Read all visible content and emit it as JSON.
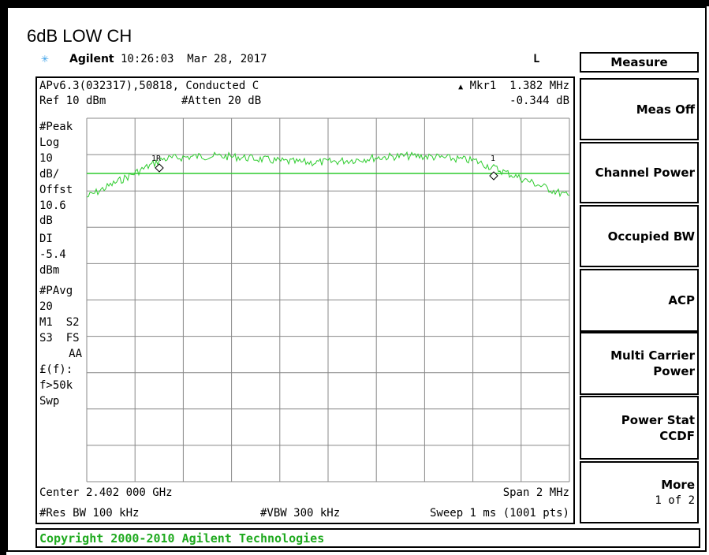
{
  "title": "6dB LOW CH",
  "status": {
    "brand": "Agilent",
    "time": "10:26:03  Mar 28, 2017",
    "indicator": "L"
  },
  "header": {
    "line1": "APv6.3(032317),50818, Conducted C",
    "ref": "Ref 10 dBm",
    "atten": "#Atten 20 dB",
    "marker": "Mkr1  1.382 MHz",
    "marker_value": "-0.344 dB"
  },
  "left_labels": [
    "#Peak",
    "Log",
    "10",
    "dB/",
    "Offst",
    "10.6",
    "dB",
    "DI",
    "-5.4",
    "dBm",
    "#PAvg",
    "20",
    "M1  S2",
    "S3  FS",
    "AA",
    "£(f):",
    "f>50k",
    "Swp"
  ],
  "markers": [
    "1R",
    "1"
  ],
  "footer": {
    "center": "Center 2.402 000 GHz",
    "span": "Span 2 MHz",
    "rbw": "#Res BW 100 kHz",
    "vbw": "#VBW 300 kHz",
    "sweep": "Sweep 1 ms (1001 pts)"
  },
  "menu_title": "Measure",
  "softkeys": [
    {
      "lines": [
        "Meas Off"
      ]
    },
    {
      "lines": [
        "Channel Power"
      ]
    },
    {
      "lines": [
        "Occupied BW"
      ]
    },
    {
      "lines": [
        "ACP"
      ]
    },
    {
      "lines": [
        "Multi Carrier",
        "Power"
      ]
    },
    {
      "lines": [
        "Power Stat",
        "CCDF"
      ]
    },
    {
      "lines": [
        "More"
      ],
      "sub": "1 of 2"
    }
  ],
  "copyright": "Copyright 2000-2010 Agilent Technologies"
}
